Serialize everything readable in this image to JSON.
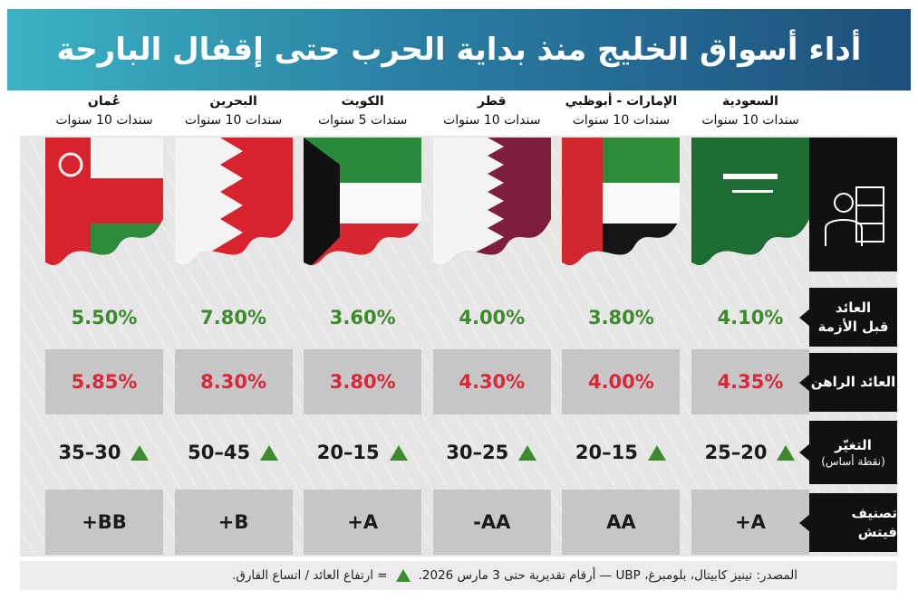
{
  "title": "أداء أسواق الخليج منذ بداية الحرب حتى إقفال البارحة",
  "columns": [
    {
      "country": "السعودية",
      "bond": "سندات 10 سنوات"
    },
    {
      "country": "الإمارات - أبوظبي",
      "bond": "سندات 10 سنوات"
    },
    {
      "country": "قطر",
      "bond": "سندات 10 سنوات"
    },
    {
      "country": "الكويت",
      "bond": "سندات 5 سنوات"
    },
    {
      "country": "البحرين",
      "bond": "سندات 10 سنوات"
    },
    {
      "country": "عُمان",
      "bond": "سندات 10 سنوات"
    }
  ],
  "row_labels": [
    [
      "العائد",
      "قبل الأزمة"
    ],
    [
      "العائد الراهن"
    ],
    [
      "التغيّر",
      "(نقطة أساس)"
    ],
    [
      "تصنيف فيتش"
    ]
  ],
  "rows": [
    [
      "4.10%",
      "3.80%",
      "4.00%",
      "3.60%",
      "7.80%",
      "5.50%"
    ],
    [
      "4.35%",
      "4.00%",
      "4.30%",
      "3.80%",
      "8.30%",
      "5.85%"
    ],
    [
      "25–20",
      "20–15",
      "30–25",
      "20–15",
      "50–45",
      "35–30"
    ],
    [
      "+A",
      "AA",
      "-AA",
      "+A",
      "+B",
      "+BB"
    ]
  ],
  "footer": {
    "source": "المصدر: تينيز كابيتال، بلومبرغ، UBP — أرقام تقديرية حتى 3 مارس 2026.",
    "legend": "= ارتفاع العائد / اتساع الفارق."
  }
}
